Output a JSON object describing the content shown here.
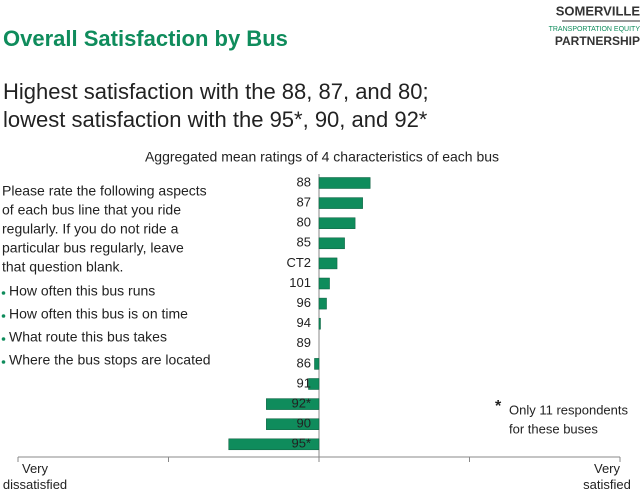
{
  "header": {
    "title": "Overall Satisfaction by Bus",
    "logo": [
      "SOMERVILLE",
      "TRANSPORTATION EQUITY",
      "PARTNERSHIP"
    ]
  },
  "headline": [
    "Highest satisfaction with the 88, 87, and 80;",
    "lowest satisfaction with the 95*, 90, and 92*"
  ],
  "question": [
    "Please rate the following aspects",
    "of each bus line that you ride",
    "regularly. If you do not ride a",
    "particular bus regularly, leave",
    "that question blank."
  ],
  "bullets": [
    "How often this bus runs",
    "How often this bus is on time",
    "What route this bus takes",
    "Where the bus stops are located"
  ],
  "note": {
    "symbol": "*",
    "lines": [
      "Only 11 respondents",
      "for these buses"
    ]
  },
  "chart_data": {
    "type": "bar",
    "orientation": "horizontal",
    "title": "Aggregated mean ratings of 4 characteristics of each bus",
    "categories": [
      "88",
      "87",
      "80",
      "85",
      "CT2",
      "101",
      "96",
      "94",
      "89",
      "86",
      "91",
      "92*",
      "90",
      "95*"
    ],
    "values": [
      0.34,
      0.29,
      0.24,
      0.17,
      0.12,
      0.07,
      0.05,
      0.01,
      0,
      -0.03,
      -0.07,
      -0.35,
      -0.35,
      -0.6
    ],
    "color": "#0f8c5c",
    "xlim": [
      -2,
      2
    ],
    "xticks": [
      {
        "value": -2,
        "label": "Very dissatisfied"
      },
      {
        "value": -1,
        "label": null
      },
      {
        "value": 0,
        "label": null
      },
      {
        "value": 1,
        "label": null
      },
      {
        "value": 2,
        "label": "Very satisfied"
      }
    ]
  }
}
